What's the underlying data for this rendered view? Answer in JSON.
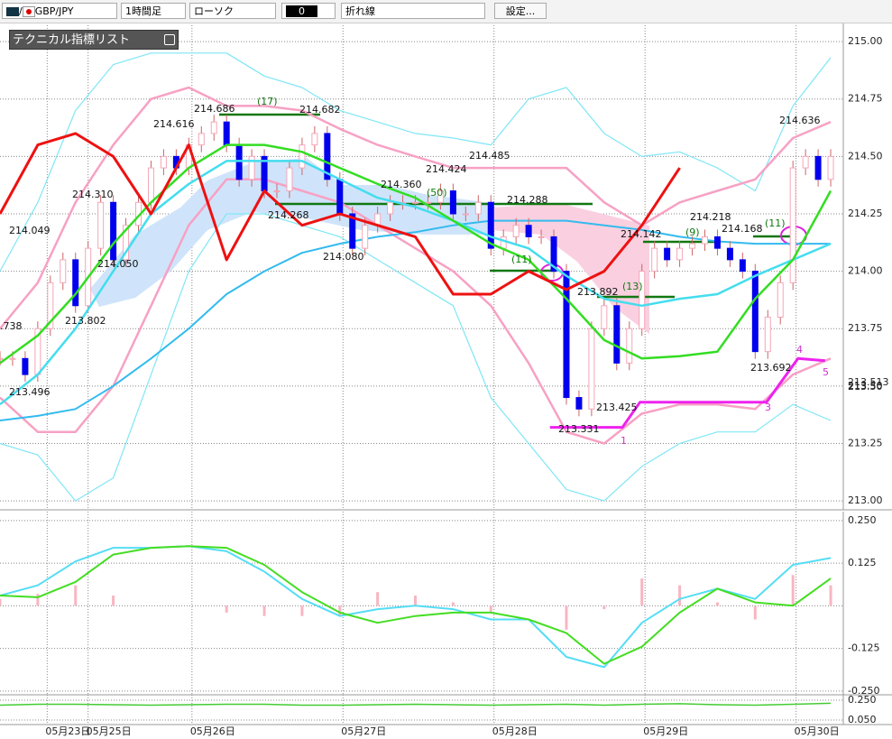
{
  "toolbar": {
    "pair": "GBP/JPY",
    "timeframe": "1時間足",
    "chart_style": "ローソク",
    "field": "0",
    "line_type": "折れ線",
    "settings": "設定..."
  },
  "indicator_panel": "テクニカル指標リスト",
  "chart_data": [
    {
      "type": "candlestick",
      "x": [
        0,
        2,
        4,
        6,
        8,
        10,
        12,
        14,
        16,
        18,
        20,
        22,
        24,
        26,
        28,
        30,
        32,
        34,
        36,
        38,
        40,
        42,
        44,
        46,
        48,
        50,
        52,
        54,
        56,
        58,
        60,
        62,
        64,
        66,
        68,
        70,
        72,
        74,
        76,
        78,
        80,
        82,
        84,
        86,
        88,
        90,
        92,
        94,
        96,
        98,
        100,
        102,
        104,
        106,
        108,
        110,
        112,
        114,
        116,
        118,
        120,
        122,
        124,
        126,
        128,
        130,
        132
      ],
      "close": [
        213.62,
        213.62,
        213.55,
        213.75,
        213.95,
        214.05,
        213.85,
        214.1,
        214.3,
        214.05,
        214.2,
        214.3,
        214.45,
        214.5,
        214.45,
        214.55,
        214.6,
        214.65,
        214.55,
        214.4,
        214.5,
        214.35,
        214.35,
        214.45,
        214.55,
        214.6,
        214.4,
        214.25,
        214.1,
        214.2,
        214.25,
        214.3,
        214.3,
        214.3,
        214.3,
        214.35,
        214.25,
        214.25,
        214.3,
        214.1,
        214.15,
        214.2,
        214.15,
        214.15,
        214.0,
        213.45,
        213.4,
        213.75,
        213.85,
        213.6,
        213.75,
        214.0,
        214.1,
        214.05,
        214.1,
        214.12,
        214.15,
        214.1,
        214.05,
        214.0,
        213.65,
        213.8,
        213.95,
        214.45,
        214.5,
        214.4,
        214.5
      ],
      "up_color": "#f4a6b8",
      "down_color": "#0000ee",
      "xlim": [
        0,
        134
      ],
      "xticks": [
        {
          "value": 7.5,
          "label": "05月23日"
        },
        {
          "value": 14,
          "label": "05月25日"
        },
        {
          "value": 30.5,
          "label": "05月26日"
        },
        {
          "value": 54.5,
          "label": "05月27日"
        },
        {
          "value": 78.5,
          "label": "05月28日"
        },
        {
          "value": 102.5,
          "label": "05月29日"
        },
        {
          "value": 126.5,
          "label": "05月30日"
        }
      ],
      "ylim": [
        212.961,
        215.083
      ],
      "yticks": [
        {
          "value": 215,
          "label": "215.00"
        },
        {
          "value": 214.75,
          "label": "214.75"
        },
        {
          "value": 214.5,
          "label": "214.50"
        },
        {
          "value": 214.25,
          "label": "214.25"
        },
        {
          "value": 214,
          "label": "214.00"
        },
        {
          "value": 213.75,
          "label": "213.75"
        },
        {
          "value": 213.5,
          "label": "213.50"
        },
        {
          "value": 213.25,
          "label": "213.25"
        },
        {
          "value": 213,
          "label": "213.00"
        }
      ],
      "grid": true,
      "series": [
        {
          "color": "#7fe6f5",
          "x": [
            0,
            6,
            12,
            18,
            24,
            30,
            36,
            42,
            48,
            54,
            60,
            66,
            72,
            78,
            84,
            90,
            96,
            102,
            108,
            114,
            120,
            126,
            132
          ],
          "values": [
            214.0,
            214.3,
            214.7,
            214.9,
            214.95,
            214.95,
            214.95,
            214.85,
            214.8,
            214.7,
            214.65,
            214.6,
            214.58,
            214.55,
            214.75,
            214.8,
            214.6,
            214.5,
            214.52,
            214.45,
            214.35,
            214.72,
            214.93
          ],
          "width": 1.2
        },
        {
          "color": "#7fe6f5",
          "x": [
            0,
            6,
            12,
            18,
            24,
            30,
            36,
            42,
            48,
            54,
            60,
            66,
            72,
            78,
            84,
            90,
            96,
            102,
            108,
            114,
            120,
            126,
            132
          ],
          "values": [
            213.25,
            213.2,
            213.0,
            213.1,
            213.55,
            214.0,
            214.25,
            214.25,
            214.2,
            214.15,
            214.05,
            213.95,
            213.85,
            213.45,
            213.25,
            213.05,
            213.0,
            213.15,
            213.25,
            213.3,
            213.3,
            213.42,
            213.35
          ],
          "width": 1.2
        },
        {
          "color": "#f7a1c4",
          "x": [
            0,
            6,
            12,
            18,
            24,
            30,
            36,
            42,
            48,
            54,
            60,
            66,
            72,
            78,
            84,
            90,
            96,
            102,
            108,
            114,
            120,
            126,
            132
          ],
          "values": [
            213.75,
            213.95,
            214.3,
            214.55,
            214.75,
            214.8,
            214.72,
            214.72,
            214.7,
            214.62,
            214.55,
            214.5,
            214.45,
            214.45,
            214.45,
            214.45,
            214.3,
            214.2,
            214.3,
            214.35,
            214.4,
            214.58,
            214.65
          ],
          "width": 2.5
        },
        {
          "color": "#f7a1c4",
          "x": [
            0,
            6,
            12,
            18,
            24,
            30,
            36,
            42,
            48,
            54,
            60,
            66,
            72,
            78,
            84,
            90,
            96,
            102,
            108,
            114,
            120,
            126,
            132
          ],
          "values": [
            213.45,
            213.3,
            213.3,
            213.5,
            213.85,
            214.2,
            214.4,
            214.4,
            214.35,
            214.3,
            214.2,
            214.1,
            214.0,
            213.85,
            213.6,
            213.3,
            213.25,
            213.38,
            213.42,
            213.42,
            213.4,
            213.55,
            213.62
          ],
          "width": 2.5
        },
        {
          "color": "#33bbee",
          "x": [
            0,
            6,
            12,
            18,
            24,
            30,
            36,
            42,
            48,
            54,
            60,
            66,
            72,
            78,
            84,
            90,
            96,
            102,
            108,
            114,
            120,
            126,
            132
          ],
          "values": [
            213.35,
            213.37,
            213.4,
            213.5,
            213.62,
            213.75,
            213.9,
            214.0,
            214.08,
            214.12,
            214.15,
            214.17,
            214.2,
            214.22,
            214.22,
            214.22,
            214.2,
            214.18,
            214.15,
            214.13,
            214.12,
            214.12,
            214.12
          ],
          "width": 2
        },
        {
          "color": "#44ddee",
          "x": [
            0,
            6,
            12,
            18,
            24,
            30,
            36,
            42,
            48,
            54,
            60,
            66,
            72,
            78,
            84,
            90,
            96,
            102,
            108,
            114,
            120,
            126,
            132
          ],
          "values": [
            213.42,
            213.55,
            213.75,
            214.0,
            214.25,
            214.38,
            214.48,
            214.48,
            214.48,
            214.4,
            214.32,
            214.28,
            214.22,
            214.15,
            214.1,
            213.98,
            213.88,
            213.85,
            213.88,
            213.9,
            213.98,
            214.05,
            214.12
          ],
          "width": 2.5
        },
        {
          "color": "#33dd22",
          "x": [
            0,
            6,
            12,
            18,
            24,
            30,
            36,
            42,
            48,
            54,
            60,
            66,
            72,
            78,
            84,
            90,
            96,
            102,
            108,
            114,
            120,
            126,
            132
          ],
          "values": [
            213.6,
            213.72,
            213.9,
            214.12,
            214.3,
            214.45,
            214.55,
            214.55,
            214.52,
            214.45,
            214.38,
            214.32,
            214.22,
            214.12,
            214.05,
            213.88,
            213.7,
            213.62,
            213.63,
            213.65,
            213.88,
            214.05,
            214.35
          ],
          "width": 2.5
        },
        {
          "color": "#ee1111",
          "x": [
            0,
            6,
            12,
            18,
            24,
            30,
            36,
            42,
            48,
            54,
            60,
            66,
            72,
            78,
            84,
            90,
            96,
            102,
            108,
            114,
            120,
            126,
            132
          ],
          "values": [
            214.25,
            214.55,
            214.6,
            214.5,
            214.25,
            214.55,
            214.05,
            214.35,
            214.2,
            214.25,
            214.2,
            214.15,
            213.9,
            213.9,
            214.0,
            213.92,
            214.0,
            214.2,
            214.45,
            null,
            null,
            null,
            null
          ],
          "width": 3
        },
        {
          "color": "#ee22ee",
          "x": [
            87.4,
            98.9,
            101.7,
            121.8,
            126.8,
            131.1
          ],
          "values": [
            213.32,
            213.32,
            213.43,
            213.43,
            213.62,
            213.61
          ],
          "width": 3
        }
      ],
      "annotations": [
        ".738",
        "213.496",
        "214.049",
        "214.310",
        "214.050",
        "213.802",
        "214.616",
        "214.686",
        "(17)",
        "214.682",
        "214.268",
        "214.360",
        "214.080",
        "(50)",
        "214.424",
        "214.485",
        "214.288",
        "(11)",
        "213.892",
        "(13)",
        "214.142",
        "(9)",
        "214.218",
        "214.168",
        "(11)",
        "214.636",
        "213.692",
        "213.425",
        "213.331",
        "1",
        "3",
        "4",
        "5"
      ],
      "axis_notes": [
        "213.513",
        "213.50"
      ]
    },
    {
      "type": "macd",
      "xlim": [
        0,
        134
      ],
      "ylim": [
        -0.261,
        0.276
      ],
      "yticks": [
        {
          "value": 0.25,
          "label": "0.250"
        },
        0.125,
        -0.125,
        {
          "value": -0.25,
          "label": "-0.250"
        }
      ],
      "zero": 0,
      "histogram": {
        "color": "#f7b6c2",
        "x": [
          0,
          6,
          12,
          18,
          24,
          30,
          36,
          42,
          48,
          54,
          60,
          66,
          72,
          78,
          84,
          90,
          96,
          102,
          108,
          114,
          120,
          126,
          132
        ],
        "values": [
          0.02,
          0.035,
          0.06,
          0.03,
          0.0,
          0.0,
          -0.02,
          -0.03,
          -0.03,
          -0.03,
          0.04,
          0.03,
          0.01,
          -0.02,
          0.0,
          -0.07,
          -0.01,
          0.08,
          0.06,
          0.01,
          -0.04,
          0.09,
          0.06
        ]
      },
      "series": [
        {
          "color": "#55ddf5",
          "x": [
            0,
            6,
            12,
            18,
            24,
            30,
            36,
            42,
            48,
            54,
            60,
            66,
            72,
            78,
            84,
            90,
            96,
            102,
            108,
            114,
            120,
            126,
            132
          ],
          "values": [
            0.03,
            0.06,
            0.13,
            0.17,
            0.17,
            0.175,
            0.16,
            0.1,
            0.02,
            -0.03,
            -0.01,
            0.0,
            -0.01,
            -0.04,
            -0.04,
            -0.15,
            -0.18,
            -0.05,
            0.02,
            0.05,
            0.02,
            0.12,
            0.14
          ],
          "width": 2
        },
        {
          "color": "#44dd22",
          "x": [
            0,
            6,
            12,
            18,
            24,
            30,
            36,
            42,
            48,
            54,
            60,
            66,
            72,
            78,
            84,
            90,
            96,
            102,
            108,
            114,
            120,
            126,
            132
          ],
          "values": [
            0.03,
            0.025,
            0.07,
            0.15,
            0.17,
            0.175,
            0.17,
            0.12,
            0.04,
            -0.02,
            -0.05,
            -0.03,
            -0.02,
            -0.02,
            -0.04,
            -0.08,
            -0.17,
            -0.12,
            -0.02,
            0.05,
            0.01,
            0.0,
            0.08
          ],
          "width": 2
        }
      ]
    },
    {
      "type": "line",
      "xlim": [
        0,
        134
      ],
      "ylim": [
        0.005,
        0.305
      ],
      "yticks": [
        {
          "value": 0.25,
          "label": "0.250"
        },
        {
          "value": 0.05,
          "label": "0.050"
        }
      ],
      "series": [
        {
          "color": "#44cc33",
          "x": [
            0,
            6,
            12,
            18,
            24,
            30,
            36,
            42,
            48,
            54,
            60,
            66,
            72,
            78,
            84,
            90,
            96,
            102,
            108,
            114,
            120,
            126,
            132
          ],
          "values": [
            0.2,
            0.21,
            0.21,
            0.205,
            0.2,
            0.205,
            0.21,
            0.21,
            0.2,
            0.2,
            0.205,
            0.21,
            0.205,
            0.2,
            0.205,
            0.21,
            0.2,
            0.21,
            0.215,
            0.205,
            0.2,
            0.21,
            0.22
          ],
          "width": 1.5
        }
      ]
    }
  ]
}
